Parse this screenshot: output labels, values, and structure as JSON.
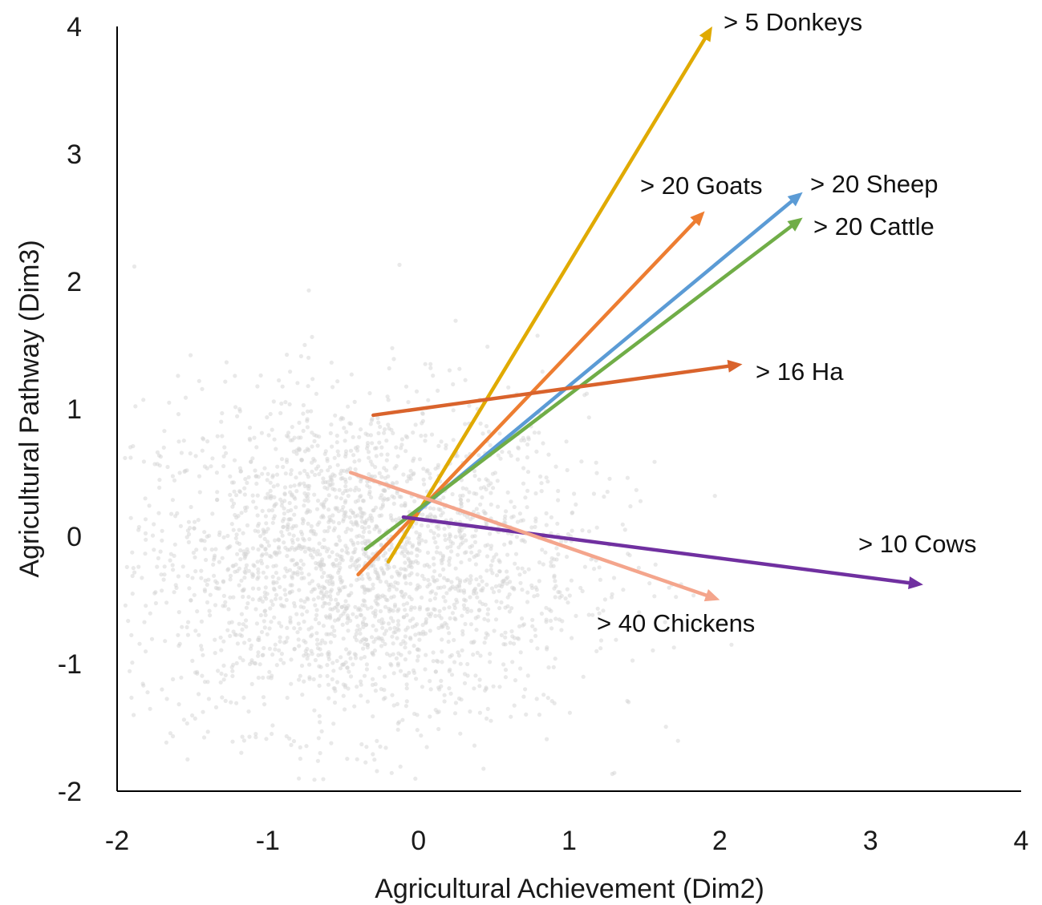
{
  "chart_data": {
    "type": "scatter",
    "title": "",
    "xlabel": "Agricultural Achievement (Dim2)",
    "ylabel": "Agricultural Pathway  (Dim3)",
    "xlim": [
      -2,
      4
    ],
    "ylim": [
      -2,
      4
    ],
    "x_ticks": [
      "-2",
      "-1",
      "0",
      "1",
      "2",
      "3",
      "4"
    ],
    "y_ticks": [
      "-2",
      "-1",
      "0",
      "1",
      "2",
      "3",
      "4"
    ],
    "grid": false,
    "background_points": {
      "description_color": "#d4d4d4",
      "approx_center": [
        -0.4,
        -0.2
      ],
      "approx_spread": [
        0.75,
        0.65
      ]
    },
    "vectors": [
      {
        "label": "> 5 Donkeys",
        "color": "#e0aa00",
        "start": [
          -0.2,
          -0.2
        ],
        "end": [
          1.95,
          4.0
        ]
      },
      {
        "label": "> 20 Goats",
        "color": "#ed7d31",
        "start": [
          -0.4,
          -0.3
        ],
        "end": [
          1.9,
          2.55
        ]
      },
      {
        "label": "> 20 Sheep",
        "color": "#5b9bd5",
        "start": [
          0.0,
          0.2
        ],
        "end": [
          2.55,
          2.7
        ]
      },
      {
        "label": "> 20 Cattle",
        "color": "#70ad47",
        "start": [
          -0.35,
          -0.1
        ],
        "end": [
          2.55,
          2.5
        ]
      },
      {
        "label": "> 16 Ha",
        "color": "#d9632c",
        "start": [
          -0.3,
          0.95
        ],
        "end": [
          2.15,
          1.35
        ]
      },
      {
        "label": "> 10 Cows",
        "color": "#7030a0",
        "start": [
          -0.1,
          0.15
        ],
        "end": [
          3.35,
          -0.38
        ]
      },
      {
        "label": "> 40 Chickens",
        "color": "#f4a58c",
        "start": [
          -0.45,
          0.5
        ],
        "end": [
          2.0,
          -0.5
        ]
      }
    ]
  }
}
